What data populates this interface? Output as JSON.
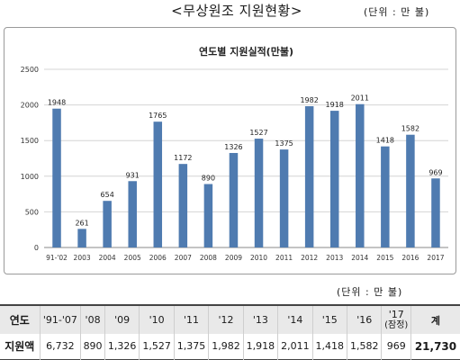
{
  "page": {
    "title": "<무상원조 지원현황>",
    "unit_top": "(단위 : 만 불)",
    "unit_mid": "(단위 : 만 불)"
  },
  "chart_data": {
    "type": "bar",
    "title": "연도별 지원실적(만불)",
    "xlabel": "",
    "ylabel": "",
    "categories": [
      "91-'02",
      "2003",
      "2004",
      "2005",
      "2006",
      "2007",
      "2008",
      "2009",
      "2010",
      "2011",
      "2012",
      "2013",
      "2014",
      "2015",
      "2016",
      "2017"
    ],
    "values": [
      1948,
      261,
      654,
      931,
      1765,
      1172,
      890,
      1326,
      1527,
      1375,
      1982,
      1918,
      2011,
      1418,
      1582,
      969
    ],
    "ylim": [
      0,
      2500
    ],
    "yticks": [
      0,
      500,
      1000,
      1500,
      2000,
      2500
    ],
    "grid": true,
    "bar_color": "#4f7bb0",
    "legend": "none"
  },
  "table": {
    "header_label": "연도",
    "row_label": "지원액",
    "years": [
      "'91-'07",
      "'08",
      "'09",
      "'10",
      "'11",
      "'12",
      "'13",
      "'14",
      "'15",
      "'16"
    ],
    "year_17": "'17",
    "year_17_note": "(잠정)",
    "total_label": "계",
    "values": [
      "6,732",
      "890",
      "1,326",
      "1,527",
      "1,375",
      "1,982",
      "1,918",
      "2,011",
      "1,418",
      "1,582"
    ],
    "value_17": "969",
    "total_value": "21,730"
  }
}
